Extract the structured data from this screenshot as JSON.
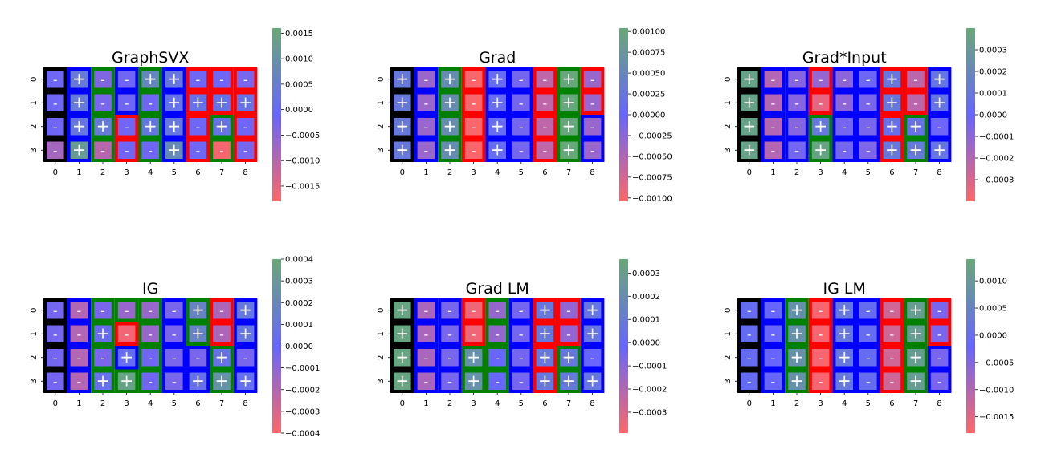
{
  "chart_data": [
    {
      "type": "heatmap",
      "title": "GraphSVX",
      "x": [
        "0",
        "1",
        "2",
        "3",
        "4",
        "5",
        "6",
        "7",
        "8"
      ],
      "y": [
        "0",
        "1",
        "2",
        "3"
      ],
      "column_outline": [
        "#000000",
        "#0000ff",
        "#008000",
        "#0000ff",
        "#008000",
        "#0000ff",
        "#ff0000",
        "#ff0000",
        "#ff0000"
      ],
      "cell_outline": [
        [],
        [],
        [
          [
            2,
            3,
            "#ff0000"
          ],
          [
            2,
            7,
            "#008000"
          ]
        ],
        [
          [
            3,
            3,
            "#ff0000"
          ],
          [
            3,
            6,
            "#ff0000"
          ],
          [
            3,
            7,
            "#008000"
          ]
        ]
      ],
      "values": [
        [
          -0.0002,
          0.0004,
          -0.0004,
          -0.0002,
          0.0007,
          0.0003,
          -0.0002,
          -0.0002,
          -0.0003
        ],
        [
          -0.0002,
          0.0004,
          -0.0003,
          -0.0002,
          -0.0002,
          0.0002,
          0.0002,
          0.0002,
          0.0002
        ],
        [
          -0.0002,
          0.0003,
          0.0004,
          -0.0002,
          0.0003,
          0.0003,
          -0.0002,
          0.0002,
          -0.0002
        ],
        [
          -0.0008,
          0.0012,
          -0.001,
          -0.0002,
          -0.0002,
          0.0008,
          -0.0002,
          -0.0017,
          -0.0003
        ]
      ],
      "colorbar": {
        "ticks": [
          "0.0015",
          "0.0010",
          "0.0005",
          "0.0000",
          "−0.0005",
          "−0.0010",
          "−0.0015"
        ],
        "values": [
          0.0015,
          0.001,
          0.0005,
          0,
          -0.0005,
          -0.001,
          -0.0015
        ],
        "range": [
          -0.0018,
          0.0016
        ]
      }
    },
    {
      "type": "heatmap",
      "title": "Grad",
      "x": [
        "0",
        "1",
        "2",
        "3",
        "4",
        "5",
        "6",
        "7",
        "8"
      ],
      "y": [
        "0",
        "1",
        "2",
        "3"
      ],
      "column_outline": [
        "#000000",
        "#0000ff",
        "#008000",
        "#ff0000",
        "#0000ff",
        "#0000ff",
        "#ff0000",
        "#008000",
        "#ff0000"
      ],
      "cell_outline": [
        [],
        [],
        [
          [
            2,
            8,
            "#0000ff"
          ]
        ],
        [
          [
            3,
            8,
            "#0000ff"
          ]
        ]
      ],
      "values": [
        [
          0.00028,
          -0.00035,
          0.0006,
          -0.001,
          0.0001,
          -0.0001,
          -0.0006,
          0.001,
          -0.00035
        ],
        [
          0.00028,
          -0.00035,
          0.0006,
          -0.001,
          0.0001,
          -0.0001,
          -0.0006,
          0.001,
          -0.00035
        ],
        [
          0.00028,
          -0.00035,
          0.0006,
          -0.001,
          0.0001,
          -0.0001,
          -0.0006,
          0.001,
          -0.00035
        ],
        [
          0.00028,
          -0.00035,
          0.0006,
          -0.001,
          0.0001,
          -0.0001,
          -0.0006,
          0.001,
          -0.00035
        ]
      ],
      "colorbar": {
        "ticks": [
          "0.00100",
          "0.00075",
          "0.00050",
          "0.00025",
          "0.00000",
          "−0.00025",
          "−0.00050",
          "−0.00075",
          "−0.00100"
        ],
        "values": [
          0.001,
          0.00075,
          0.0005,
          0.00025,
          0,
          -0.00025,
          -0.0005,
          -0.00075,
          -0.001
        ],
        "range": [
          -0.00104,
          0.00104
        ]
      }
    },
    {
      "type": "heatmap",
      "title": "Grad*Input",
      "x": [
        "0",
        "1",
        "2",
        "3",
        "4",
        "5",
        "6",
        "7",
        "8"
      ],
      "y": [
        "0",
        "1",
        "2",
        "3"
      ],
      "column_outline": [
        "#000000",
        "#0000ff",
        "#0000ff",
        "#ff0000",
        "#0000ff",
        "#0000ff",
        "#ff0000",
        "#ff0000",
        "#0000ff"
      ],
      "cell_outline": [
        [],
        [],
        [
          [
            2,
            3,
            "#008000"
          ],
          [
            2,
            7,
            "#008000"
          ]
        ],
        [
          [
            3,
            3,
            "#008000"
          ],
          [
            3,
            7,
            "#008000"
          ]
        ]
      ],
      "values": [
        [
          0.00035,
          -0.0002,
          -8e-05,
          -0.00012,
          -0.0001,
          -2e-05,
          0.0001,
          -0.00022,
          9e-05
        ],
        [
          0.00035,
          -0.0002,
          -8e-05,
          -0.00033,
          -0.0001,
          -5e-05,
          0.0001,
          -0.00022,
          9e-05
        ],
        [
          0.00035,
          -0.0002,
          -8e-05,
          0.0001,
          -4e-05,
          -5e-05,
          6e-05,
          6e-05,
          -2e-05
        ],
        [
          0.00035,
          -0.0002,
          -4e-05,
          0.00036,
          -4e-05,
          -6e-05,
          0.0001,
          0.0001,
          9e-05
        ]
      ],
      "colorbar": {
        "ticks": [
          "0.0003",
          "0.0002",
          "0.0001",
          "0.0000",
          "−0.0001",
          "−0.0002",
          "−0.0003"
        ],
        "values": [
          0.0003,
          0.0002,
          0.0001,
          0,
          -0.0001,
          -0.0002,
          -0.0003
        ],
        "range": [
          -0.0004,
          0.0004
        ]
      }
    },
    {
      "type": "heatmap",
      "title": "IG",
      "x": [
        "0",
        "1",
        "2",
        "3",
        "4",
        "5",
        "6",
        "7",
        "8"
      ],
      "y": [
        "0",
        "1",
        "2",
        "3"
      ],
      "column_outline": [
        "#000000",
        "#0000ff",
        "#008000",
        "#008000",
        "#008000",
        "#0000ff",
        "#008000",
        "#ff0000",
        "#0000ff"
      ],
      "cell_outline": [
        [],
        [
          [
            1,
            3,
            "#ff0000"
          ]
        ],
        [
          [
            2,
            3,
            "#0000ff"
          ],
          [
            2,
            6,
            "#0000ff"
          ],
          [
            2,
            7,
            "#008000"
          ]
        ],
        [
          [
            3,
            6,
            "#0000ff"
          ],
          [
            3,
            7,
            "#008000"
          ]
        ]
      ],
      "values": [
        [
          -4e-05,
          -0.0002,
          -5e-05,
          -0.00013,
          -0.00013,
          -5e-05,
          0.00017,
          -0.00018,
          0.0001
        ],
        [
          -4e-05,
          -0.0002,
          4e-05,
          -0.00036,
          -0.00013,
          -5e-05,
          0.00017,
          -0.00018,
          0.0001
        ],
        [
          -4e-05,
          -0.0002,
          -5e-05,
          4e-05,
          -3e-05,
          -5e-05,
          -5e-05,
          6e-05,
          -5e-05
        ],
        [
          -4e-05,
          -0.0002,
          6e-05,
          0.00036,
          -3e-05,
          -5e-05,
          5e-05,
          0.00026,
          5e-05
        ]
      ],
      "colorbar": {
        "ticks": [
          "0.0004",
          "0.0003",
          "0.0002",
          "0.0001",
          "0.0000",
          "−0.0001",
          "−0.0002",
          "−0.0003",
          "−0.0004"
        ],
        "values": [
          0.0004,
          0.0003,
          0.0002,
          0.0001,
          0,
          -0.0001,
          -0.0002,
          -0.0003,
          -0.0004
        ],
        "range": [
          -0.0004,
          0.0004
        ]
      }
    },
    {
      "type": "heatmap",
      "title": "Grad LM",
      "x": [
        "0",
        "1",
        "2",
        "3",
        "4",
        "5",
        "6",
        "7",
        "8"
      ],
      "y": [
        "0",
        "1",
        "2",
        "3"
      ],
      "column_outline": [
        "#000000",
        "#0000ff",
        "#0000ff",
        "#ff0000",
        "#008000",
        "#0000ff",
        "#ff0000",
        "#ff0000",
        "#0000ff"
      ],
      "cell_outline": [
        [],
        [],
        [
          [
            2,
            3,
            "#008000"
          ],
          [
            2,
            7,
            "#008000"
          ]
        ],
        [
          [
            3,
            3,
            "#008000"
          ],
          [
            3,
            7,
            "#008000"
          ]
        ]
      ],
      "values": [
        [
          0.00033,
          -0.00018,
          -6e-05,
          -0.00035,
          -0.00013,
          -5e-05,
          8e-05,
          -0.00012,
          7e-05
        ],
        [
          0.00033,
          -0.00018,
          -6e-05,
          -0.00035,
          -0.00013,
          -5e-05,
          8e-05,
          -0.00012,
          7e-05
        ],
        [
          0.00033,
          -0.00018,
          -6e-05,
          0.00022,
          -2e-05,
          -5e-05,
          8e-05,
          8e-05,
          -2e-05
        ],
        [
          0.00033,
          -0.00018,
          -6e-05,
          0.00022,
          -2e-05,
          -5e-05,
          8e-05,
          8e-05,
          7e-05
        ]
      ],
      "colorbar": {
        "ticks": [
          "0.0003",
          "0.0002",
          "0.0001",
          "0.0000",
          "−0.0001",
          "−0.0002",
          "−0.0003"
        ],
        "values": [
          0.0003,
          0.0002,
          0.0001,
          0,
          -0.0001,
          -0.0002,
          -0.0003
        ],
        "range": [
          -0.00039,
          0.00036
        ]
      }
    },
    {
      "type": "heatmap",
      "title": "IG LM",
      "x": [
        "0",
        "1",
        "2",
        "3",
        "4",
        "5",
        "6",
        "7",
        "8"
      ],
      "y": [
        "0",
        "1",
        "2",
        "3"
      ],
      "column_outline": [
        "#000000",
        "#0000ff",
        "#008000",
        "#ff0000",
        "#0000ff",
        "#0000ff",
        "#ff0000",
        "#008000",
        "#ff0000"
      ],
      "cell_outline": [
        [],
        [],
        [
          [
            2,
            8,
            "#0000ff"
          ]
        ],
        [
          [
            3,
            8,
            "#0000ff"
          ]
        ]
      ],
      "values": [
        [
          -5e-05,
          -0.0002,
          0.0008,
          -0.0017,
          0.0002,
          -5e-05,
          -0.0013,
          0.0011,
          -0.0004
        ],
        [
          -5e-05,
          -0.0002,
          0.0008,
          -0.0017,
          0.0002,
          -5e-05,
          -0.0013,
          0.0011,
          -0.0004
        ],
        [
          -5e-05,
          -0.0002,
          0.0008,
          -0.0017,
          0.0002,
          -5e-05,
          -0.0013,
          0.0011,
          -0.0004
        ],
        [
          -5e-05,
          -0.0002,
          0.0008,
          -0.0017,
          0.0002,
          -5e-05,
          -0.0013,
          0.0011,
          -0.0004
        ]
      ],
      "colorbar": {
        "ticks": [
          "0.0010",
          "0.0005",
          "0.0000",
          "−0.0005",
          "−0.0010",
          "−0.0015"
        ],
        "values": [
          0.001,
          0.0005,
          0,
          -0.0005,
          -0.001,
          -0.0015
        ],
        "range": [
          -0.0018,
          0.0014
        ]
      }
    }
  ],
  "colors": {
    "colormap": [
      "#ff6666",
      "#6666ff",
      "#66aa77"
    ],
    "sign_positive": "+",
    "sign_negative": "-"
  }
}
